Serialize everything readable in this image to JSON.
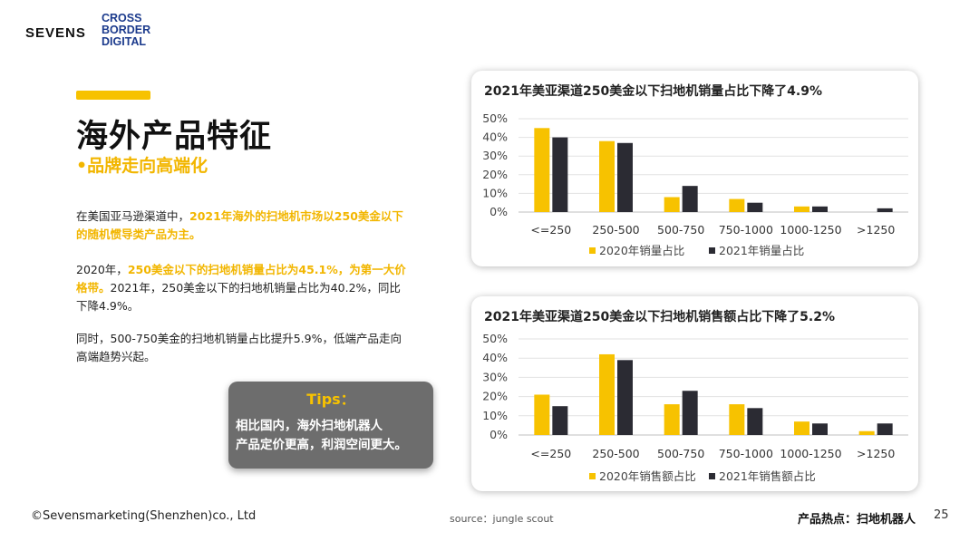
{
  "logo": {
    "main": "SEVENS",
    "sub": [
      "CROSS",
      "BORDER",
      "DIGITAL"
    ]
  },
  "title": "海外产品特征",
  "subtitle": "•品牌走向高端化",
  "paragraphs": {
    "p1_a": "在美国亚马逊渠道中，",
    "p1_hl": "2021年海外的扫地机市场以250美金以下的随机惯导类产品为主。",
    "p2_a": "2020年，",
    "p2_hl": "250美金以下的扫地机销量占比为45.1%，为第一大价格带。",
    "p2_b": "2021年，250美金以下的扫地机销量占比为40.2%，同比下降4.9%。",
    "p3": "同时，500-750美金的扫地机销量占比提升5.9%，低端产品走向高端趋势兴起。"
  },
  "tips": {
    "title": "Tips：",
    "line1": "相比国内，海外扫地机器人",
    "line2": "产品定价更高，利润空间更大。"
  },
  "colors": {
    "accent": "#F7C200",
    "dark_bar": "#2B2B33",
    "tips_bg": "#6D6D6D"
  },
  "chart_data": [
    {
      "type": "bar",
      "title": "2021年美亚渠道250美金以下扫地机销量占比下降了4.9%",
      "categories": [
        "<=250",
        "250-500",
        "500-750",
        "750-1000",
        "1000-1250",
        ">1250"
      ],
      "series": [
        {
          "name": "2020年销量占比",
          "values": [
            45,
            38,
            8,
            7,
            3,
            0
          ],
          "color": "#F7C200"
        },
        {
          "name": "2021年销量占比",
          "values": [
            40,
            37,
            14,
            5,
            3,
            2
          ],
          "color": "#2B2B33"
        }
      ],
      "ylim": [
        0,
        50
      ],
      "yticks": [
        "0%",
        "10%",
        "20%",
        "30%",
        "40%",
        "50%"
      ],
      "legend": "bottom",
      "grid": true
    },
    {
      "type": "bar",
      "title": "2021年美亚渠道250美金以下扫地机销售额占比下降了5.2%",
      "categories": [
        "<=250",
        "250-500",
        "500-750",
        "750-1000",
        "1000-1250",
        ">1250"
      ],
      "series": [
        {
          "name": "2020年销售额占比",
          "values": [
            21,
            42,
            16,
            16,
            7,
            2
          ],
          "color": "#F7C200"
        },
        {
          "name": "2021年销售额占比",
          "values": [
            15,
            39,
            23,
            14,
            6,
            6
          ],
          "color": "#2B2B33"
        }
      ],
      "ylim": [
        0,
        50
      ],
      "yticks": [
        "0%",
        "10%",
        "20%",
        "30%",
        "40%",
        "50%"
      ],
      "legend": "bottom",
      "grid": true
    }
  ],
  "footer": {
    "copyright": "©Sevensmarketing(Shenzhen)co., Ltd",
    "source": "source：jungle scout",
    "topic": "产品热点：扫地机器人",
    "page": "25"
  }
}
